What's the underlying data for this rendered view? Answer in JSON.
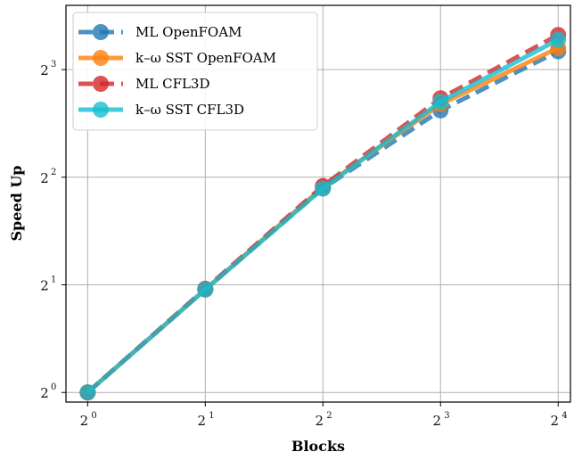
{
  "chart_data": {
    "type": "line",
    "title": "",
    "xlabel": "Blocks",
    "ylabel": "Speed Up",
    "x_scale": "log2",
    "y_scale": "log2",
    "xlim": [
      0.88,
      17.2
    ],
    "ylim": [
      0.94,
      12.1
    ],
    "grid": true,
    "legend_position": "top-left",
    "x_ticks": [
      {
        "base": "2",
        "exp": "0",
        "value": 1
      },
      {
        "base": "2",
        "exp": "1",
        "value": 2
      },
      {
        "base": "2",
        "exp": "2",
        "value": 4
      },
      {
        "base": "2",
        "exp": "3",
        "value": 8
      },
      {
        "base": "2",
        "exp": "4",
        "value": 16
      }
    ],
    "y_ticks": [
      {
        "base": "2",
        "exp": "0",
        "value": 1
      },
      {
        "base": "2",
        "exp": "1",
        "value": 2
      },
      {
        "base": "2",
        "exp": "2",
        "value": 4
      },
      {
        "base": "2",
        "exp": "3",
        "value": 8
      }
    ],
    "x": [
      1,
      2,
      4,
      8,
      16
    ],
    "series": [
      {
        "name": "ML OpenFOAM",
        "color": "#1f77b4",
        "style": "dashed",
        "values": [
          1.0,
          1.94,
          3.72,
          6.15,
          9.0
        ]
      },
      {
        "name": "k–ω SST OpenFOAM",
        "color": "#ff7f0e",
        "style": "solid",
        "values": [
          1.0,
          1.94,
          3.75,
          6.4,
          9.2
        ]
      },
      {
        "name": "ML CFL3D",
        "color": "#d62728",
        "style": "dashed",
        "values": [
          1.0,
          1.95,
          3.78,
          6.65,
          10.0
        ]
      },
      {
        "name": "k–ω SST CFL3D",
        "color": "#17becf",
        "style": "solid",
        "values": [
          1.0,
          1.94,
          3.72,
          6.5,
          9.7
        ]
      }
    ]
  }
}
